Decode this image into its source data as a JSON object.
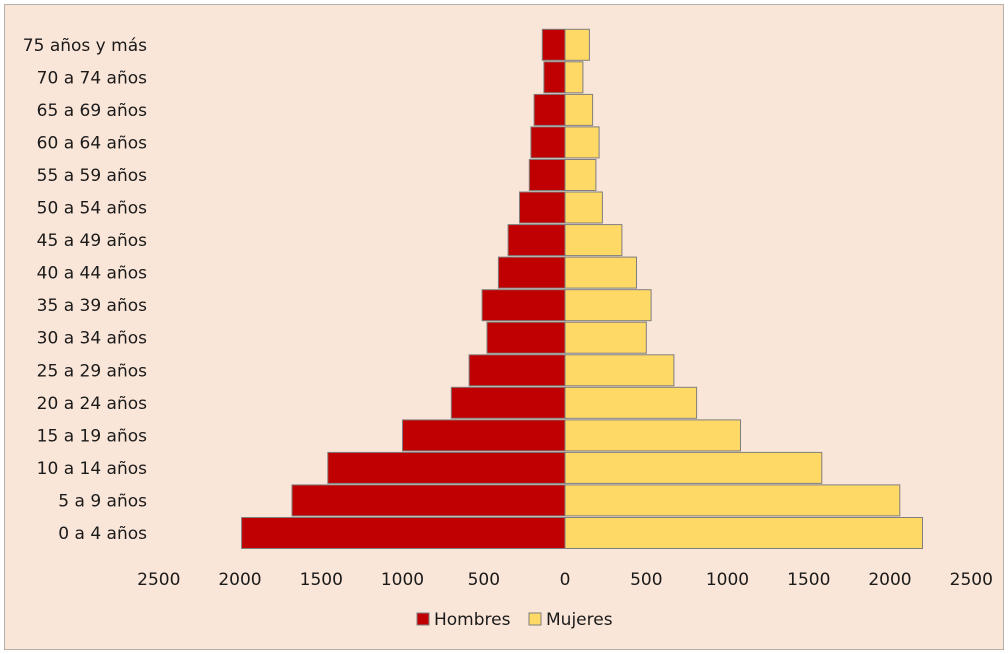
{
  "chart_data": {
    "type": "bar",
    "orientation": "horizontal",
    "layout": "population-pyramid",
    "categories": [
      "0 a 4 años",
      "5 a 9 años",
      "10 a 14 años",
      "15 a 19 años",
      "20 a 24 años",
      "25 a 29 años",
      "30 a 34 años",
      "35 a 39 años",
      "40 a 44 años",
      "45 a 49 años",
      "50 a 54 años",
      "55 a 59 años",
      "60 a 64 años",
      "65 a 69 años",
      "70 a 74 años",
      "75 años y más"
    ],
    "series": [
      {
        "name": "Hombres",
        "color": "#c00000",
        "side": "left",
        "values": [
          1990,
          1680,
          1460,
          1000,
          700,
          590,
          480,
          510,
          410,
          350,
          280,
          220,
          210,
          190,
          130,
          140
        ]
      },
      {
        "name": "Mujeres",
        "color": "#ffd966",
        "side": "right",
        "values": [
          2200,
          2060,
          1580,
          1080,
          810,
          670,
          500,
          530,
          440,
          350,
          230,
          190,
          210,
          170,
          110,
          150
        ]
      }
    ],
    "xlim": [
      -2500,
      2500
    ],
    "x_ticks": [
      -2500,
      -2000,
      -1500,
      -1000,
      -500,
      0,
      500,
      1000,
      1500,
      2000,
      2500
    ],
    "x_tick_labels": [
      "2500",
      "2000",
      "1500",
      "1000",
      "500",
      "0",
      "500",
      "1000",
      "1500",
      "2000",
      "2500"
    ],
    "grid": false,
    "legend_position": "bottom-center",
    "background": "#fae6d8",
    "bar_border": "#7f7f7f"
  }
}
